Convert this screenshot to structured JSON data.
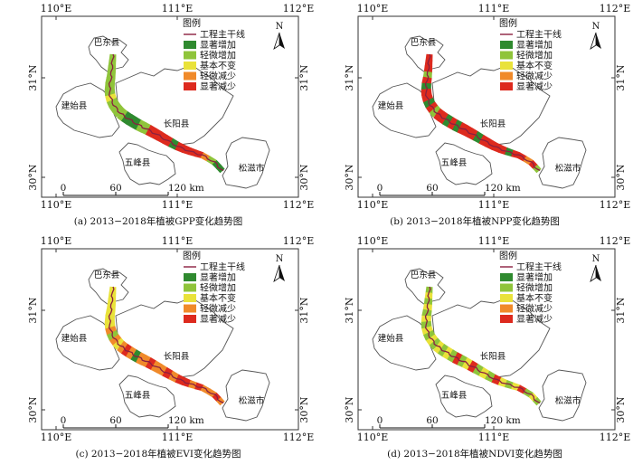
{
  "panels": [
    {
      "id": "a",
      "caption": "(a) 2013−2018年植被GPP变化趋势图",
      "pattern": [
        "2",
        "2",
        "2",
        "2",
        "2",
        "2",
        "2",
        "3",
        "2",
        "2",
        "2",
        "2",
        "1",
        "1",
        "1",
        "2",
        "2",
        "5",
        "5",
        "5",
        "5",
        "1",
        "5",
        "5",
        "5",
        "5",
        "4",
        "2",
        "1",
        "1"
      ]
    },
    {
      "id": "b",
      "caption": "(b) 2013−2018年植被NPP变化趋势图",
      "pattern": [
        "5",
        "5",
        "5",
        "2",
        "5",
        "1",
        "5",
        "5",
        "1",
        "5",
        "2",
        "5",
        "5",
        "1",
        "5",
        "1",
        "5",
        "5",
        "5",
        "1",
        "5",
        "5",
        "5",
        "5",
        "1",
        "5",
        "5",
        "4",
        "5",
        "2"
      ]
    },
    {
      "id": "c",
      "caption": "(c) 2013−2018年植被EVI变化趋势图",
      "pattern": [
        "3",
        "3",
        "3",
        "3",
        "3",
        "3",
        "3",
        "4",
        "2",
        "4",
        "3",
        "4",
        "5",
        "4",
        "1",
        "4",
        "4",
        "5",
        "4",
        "4",
        "5",
        "4",
        "5",
        "5",
        "4",
        "5",
        "4",
        "4",
        "5",
        "4"
      ]
    },
    {
      "id": "d",
      "caption": "(d) 2013−2018年植被NDVI变化趋势图",
      "pattern": [
        "2",
        "3",
        "2",
        "3",
        "2",
        "3",
        "2",
        "3",
        "2",
        "3",
        "2",
        "3",
        "2",
        "3",
        "2",
        "5",
        "2",
        "3",
        "5",
        "2",
        "3",
        "2",
        "5",
        "3",
        "2",
        "3",
        "5",
        "2",
        "3",
        "2"
      ]
    }
  ],
  "axes": {
    "lon_labels": [
      "110°E",
      "111°E",
      "112°E"
    ],
    "lat_labels": [
      "31°N",
      "30°N"
    ]
  },
  "counties": {
    "badong": "巴东县",
    "jianshi": "建始县",
    "changyang": "长阳县",
    "wufeng": "五峰县",
    "songzi": "松滋市"
  },
  "north_arrow": "N",
  "scale_bar": {
    "ticks": [
      "0",
      "60",
      "120 km"
    ]
  },
  "legend": {
    "title": "图例",
    "items": [
      {
        "label": "工程主干线",
        "kind": "line",
        "color": "#8b2040"
      },
      {
        "label": "显著增加",
        "kind": "box",
        "color": "#2f8a2f"
      },
      {
        "label": "轻微增加",
        "kind": "box",
        "color": "#8fc43a"
      },
      {
        "label": "基本不变",
        "kind": "box",
        "color": "#e9e23a"
      },
      {
        "label": "轻微减少",
        "kind": "box",
        "color": "#f08a2a"
      },
      {
        "label": "显著减少",
        "kind": "box",
        "color": "#dd2a1e"
      }
    ]
  },
  "colors": {
    "frame": "#333333",
    "boundary": "#555555",
    "mainline": "#8b2040",
    "c1": "#2f8a2f",
    "c2": "#8fc43a",
    "c3": "#e9e23a",
    "c4": "#f08a2a",
    "c5": "#dd2a1e"
  }
}
